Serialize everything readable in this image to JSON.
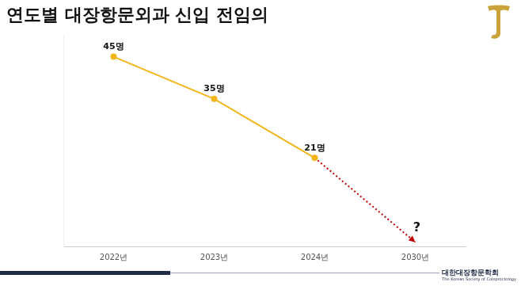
{
  "chart_data": {
    "type": "line",
    "title": "연도별 대장항문외과 신입 전임의",
    "categories": [
      "2022년",
      "2023년",
      "2024년",
      "2030년"
    ],
    "series": [
      {
        "color": "#f2b51c",
        "values": [
          45,
          35,
          21,
          null
        ],
        "value_labels": [
          "45명",
          "35명",
          "21명",
          null
        ],
        "data_labels": true,
        "marker": "circle",
        "line_style": "solid"
      },
      {
        "color": "#c00000",
        "values": [
          null,
          null,
          21,
          1
        ],
        "data_labels": false,
        "marker": "arrow",
        "line_style": "dotted"
      }
    ],
    "ylim": [
      0,
      50
    ],
    "grid": false,
    "tick_labels": "x",
    "annotations": [
      {
        "text": "?",
        "x": "2030년"
      }
    ],
    "footer": {
      "text": "대한대장항문학회",
      "subtext": "The Korean Society of Coloproctology"
    }
  }
}
